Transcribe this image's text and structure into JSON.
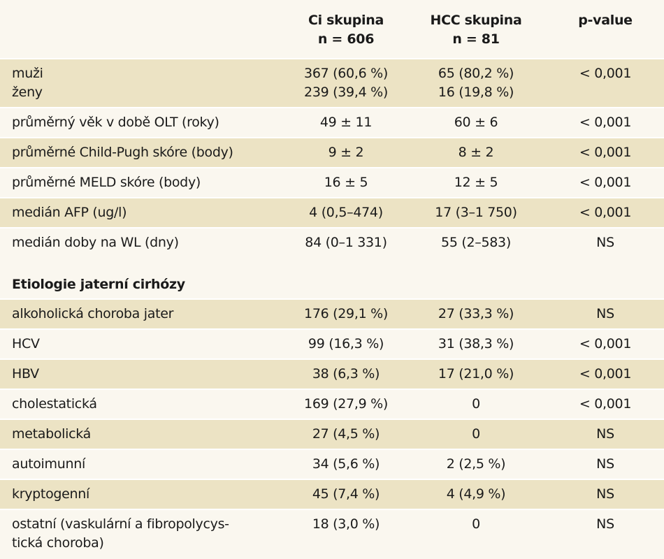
{
  "header": {
    "col1": "",
    "col2_line1": "Ci skupina",
    "col2_line2": "n = 606",
    "col3_line1": "HCC skupina",
    "col3_line2": "n = 81",
    "col4": "p-value"
  },
  "rows_top": [
    {
      "label1": "muži",
      "label2": "ženy",
      "ci1": "367 (60,6 %)",
      "ci2": "239 (39,4 %)",
      "hcc1": "65 (80,2 %)",
      "hcc2": "16 (19,8 %)",
      "p": "< 0,001"
    },
    {
      "label": "průměrný věk v době OLT (roky)",
      "ci": "49 ± 11",
      "hcc": "60 ± 6",
      "p": "< 0,001"
    },
    {
      "label": "průměrné Child-Pugh skóre (body)",
      "ci": "9 ± 2",
      "hcc": "8 ± 2",
      "p": "< 0,001"
    },
    {
      "label": "průměrné MELD skóre (body)",
      "ci": "16 ± 5",
      "hcc": "12 ± 5",
      "p": "< 0,001"
    },
    {
      "label": "medián AFP (ug/l)",
      "ci": "4 (0,5–474)",
      "hcc": "17 (3–1 750)",
      "p": "< 0,001"
    },
    {
      "label": "medián doby na WL (dny)",
      "ci": "84 (0–1 331)",
      "hcc": "55 (2–583)",
      "p": "NS"
    }
  ],
  "section_title": "Etiologie jaterní cirhózy",
  "rows_etiology": [
    {
      "label": "alkoholická choroba jater",
      "ci": "176 (29,1 %)",
      "hcc": "27 (33,3 %)",
      "p": "NS"
    },
    {
      "label": "HCV",
      "ci": "99 (16,3 %)",
      "hcc": "31 (38,3 %)",
      "p": "< 0,001"
    },
    {
      "label": "HBV",
      "ci": "38 (6,3 %)",
      "hcc": "17 (21,0 %)",
      "p": "< 0,001"
    },
    {
      "label": "cholestatická",
      "ci": "169 (27,9 %)",
      "hcc": "0",
      "p": "< 0,001"
    },
    {
      "label": "metabolická",
      "ci": "27 (4,5 %)",
      "hcc": "0",
      "p": "NS"
    },
    {
      "label": "autoimunní",
      "ci": "34 (5,6 %)",
      "hcc": "2 (2,5 %)",
      "p": "NS"
    },
    {
      "label": "kryptogenní",
      "ci": "45 (7,4 %)",
      "hcc": "4 (4,9 %)",
      "p": "NS"
    },
    {
      "label1": "ostatní (vaskulární a fibropolycys-",
      "label2": "tická choroba)",
      "ci": "18 (3,0 %)",
      "hcc": "0",
      "p": "NS"
    }
  ],
  "colors": {
    "tint": "#ece3c4",
    "background": "#faf7ef"
  }
}
